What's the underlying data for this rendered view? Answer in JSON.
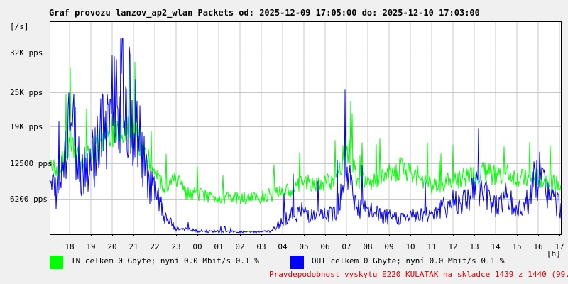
{
  "title": "Graf provozu lanzov_ap2_wlan Packets od: 2025-12-09 17:05:00 do: 2025-12-10 17:03:00",
  "y_unit": "[/s]",
  "x_unit": "[h]",
  "footer_note": "Pravdepodobnost vyskytu E220 KULATAK na skladce 1439 z 1440 (99.9 %)",
  "legend": [
    {
      "label": "IN celkem 0 Gbyte; nyní   0.0 Mbit/s 0.1 %",
      "color": "#00ff00"
    },
    {
      "label": "OUT celkem 0 Gbyte; nyní   0.0 Mbit/s 0.1 %",
      "color": "#0000ff"
    }
  ],
  "chart_data": {
    "type": "area",
    "title": "Graf provozu lanzov_ap2_wlan Packets od: 2025-12-09 17:05:00 do: 2025-12-10 17:03:00",
    "ylabel": "[/s]",
    "xlabel": "[h]",
    "ylim": [
      0,
      37500
    ],
    "grid": true,
    "y_ticks": [
      {
        "label": "6200 pps",
        "value": 6200
      },
      {
        "label": "12500 pps",
        "value": 12500
      },
      {
        "label": "19K pps",
        "value": 19000
      },
      {
        "label": "25K pps",
        "value": 25000
      },
      {
        "label": "32K pps",
        "value": 32000
      }
    ],
    "x_ticks": [
      "18",
      "19",
      "20",
      "21",
      "22",
      "23",
      "00",
      "01",
      "02",
      "03",
      "04",
      "05",
      "06",
      "07",
      "08",
      "09",
      "10",
      "11",
      "12",
      "13",
      "14",
      "15",
      "16",
      "17"
    ],
    "x": [
      "17:00",
      "17:30",
      "18:00",
      "18:30",
      "19:00",
      "19:30",
      "20:00",
      "20:30",
      "21:00",
      "21:30",
      "22:00",
      "22:30",
      "23:00",
      "23:30",
      "00:00",
      "00:30",
      "01:00",
      "01:30",
      "02:00",
      "02:30",
      "03:00",
      "03:30",
      "04:00",
      "04:30",
      "05:00",
      "05:30",
      "06:00",
      "06:30",
      "07:00",
      "07:30",
      "08:00",
      "08:30",
      "09:00",
      "09:30",
      "10:00",
      "10:30",
      "11:00",
      "11:30",
      "12:00",
      "12:30",
      "13:00",
      "13:30",
      "14:00",
      "14:30",
      "15:00",
      "15:30",
      "16:00",
      "16:30",
      "17:00"
    ],
    "series": [
      {
        "name": "IN",
        "color": "#00ff00",
        "values": [
          14000,
          10500,
          17000,
          12500,
          13500,
          16500,
          18500,
          19500,
          18000,
          14500,
          10500,
          8000,
          9500,
          7000,
          7000,
          6800,
          6600,
          6300,
          6300,
          6400,
          6600,
          7000,
          7500,
          8000,
          9500,
          8500,
          9000,
          9500,
          16000,
          9500,
          9000,
          9800,
          10800,
          11500,
          11000,
          10000,
          8500,
          9000,
          9500,
          10000,
          10500,
          11000,
          10500,
          10800,
          10000,
          9500,
          10000,
          9500,
          8500
        ]
      },
      {
        "name": "OUT",
        "color": "#0000ff",
        "values": [
          9000,
          7000,
          22000,
          11500,
          12500,
          18000,
          24000,
          26000,
          21500,
          12000,
          7000,
          3000,
          1000,
          800,
          600,
          500,
          500,
          450,
          400,
          400,
          450,
          500,
          2500,
          3500,
          4000,
          3000,
          3500,
          4000,
          11500,
          4500,
          4000,
          3500,
          3000,
          2800,
          3000,
          3500,
          4000,
          4500,
          6000,
          6000,
          8000,
          7000,
          5000,
          6500,
          4000,
          6000,
          11000,
          7000,
          5000
        ]
      }
    ]
  }
}
